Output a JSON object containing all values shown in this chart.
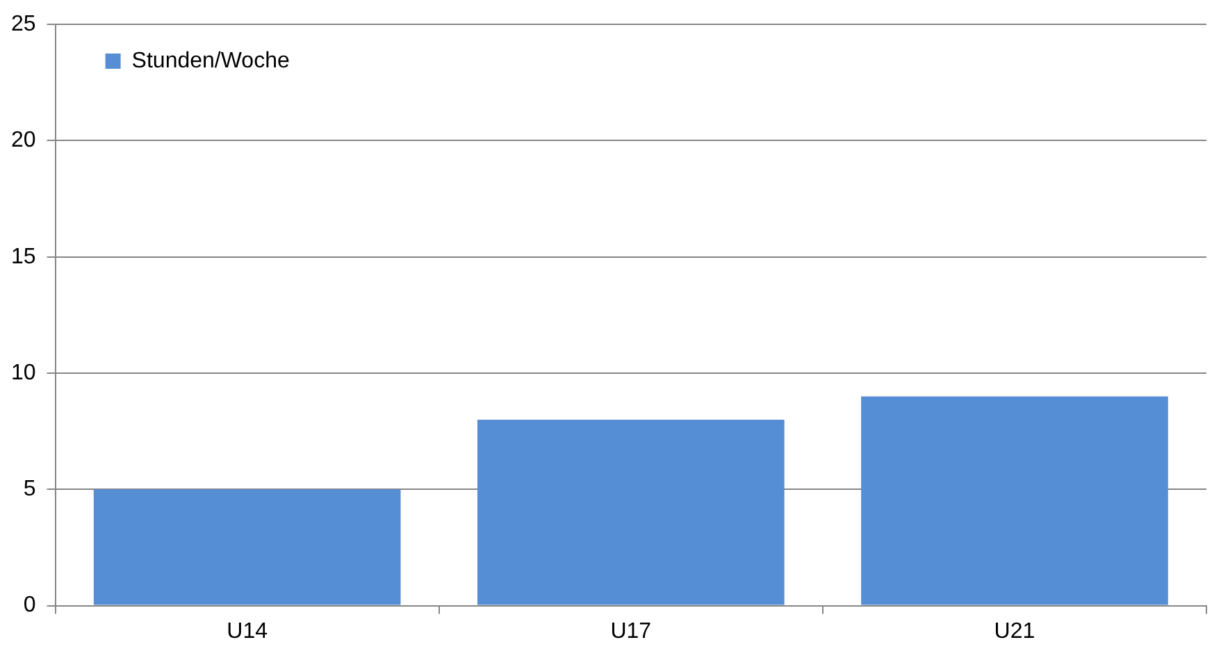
{
  "chart_data": {
    "type": "bar",
    "categories": [
      "U14",
      "U17",
      "U21"
    ],
    "series": [
      {
        "name": "Stunden/Woche",
        "color": "#558ed5",
        "values": [
          5,
          8,
          9
        ]
      }
    ],
    "ylim": [
      0,
      25
    ],
    "yticks": [
      0,
      5,
      10,
      15,
      20,
      25
    ],
    "grid": "y",
    "legend": "top left"
  }
}
